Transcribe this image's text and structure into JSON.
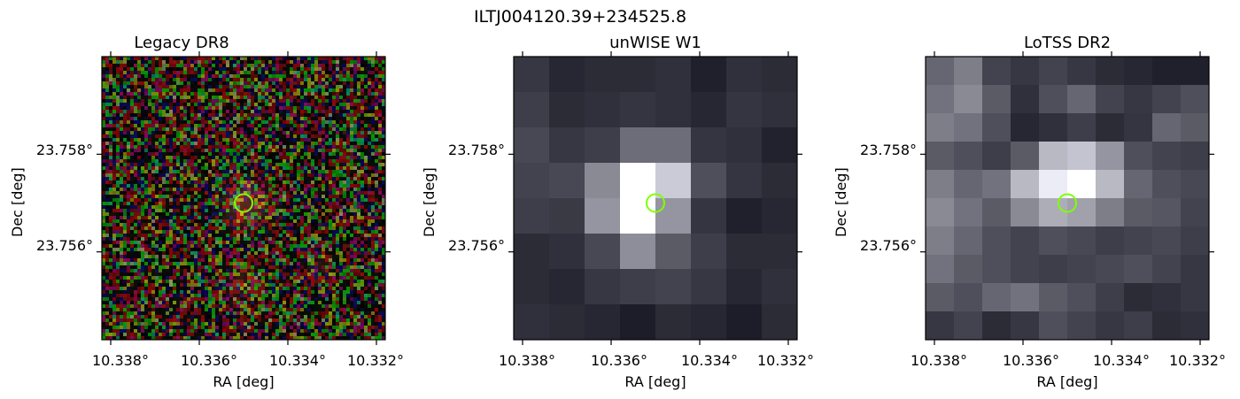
{
  "suptitle": "ILTJ004120.39+234525.8",
  "panels": [
    {
      "title": "Legacy DR8",
      "image": "legacy-rgb"
    },
    {
      "title": "unWISE W1",
      "image": "unwise-gray"
    },
    {
      "title": "LoTSS DR2",
      "image": "lotss-gray"
    }
  ],
  "axes": {
    "xlabel": "RA [deg]",
    "ylabel": "Dec [deg]",
    "xticks": [
      "10.338°",
      "10.336°",
      "10.334°",
      "10.332°"
    ],
    "yticks": [
      "23.758°",
      "23.756°"
    ]
  },
  "marker": {
    "type": "circle",
    "color": "#7fff00",
    "ra": 10.335,
    "dec": 23.757
  },
  "chart_data": {
    "type": "heatmap",
    "title": "ILTJ004120.39+234525.8",
    "subplots": [
      {
        "title": "Legacy DR8",
        "colormap": "rgb",
        "xlabel": "RA [deg]",
        "ylabel": "Dec [deg]",
        "xlim": [
          10.3382,
          10.3318
        ],
        "ylim": [
          23.7542,
          23.76
        ]
      },
      {
        "title": "unWISE W1",
        "colormap": "bone",
        "xlabel": "RA [deg]",
        "ylabel": "Dec [deg]",
        "xlim": [
          10.3382,
          10.3318
        ],
        "ylim": [
          23.7542,
          23.76
        ]
      },
      {
        "title": "LoTSS DR2",
        "colormap": "bone",
        "xlabel": "RA [deg]",
        "ylabel": "Dec [deg]",
        "xlim": [
          10.3382,
          10.3318
        ],
        "ylim": [
          23.7542,
          23.76
        ]
      }
    ],
    "xticks": [
      10.338,
      10.336,
      10.334,
      10.332
    ],
    "yticks": [
      23.758,
      23.756
    ],
    "source_position": {
      "ra": 10.335,
      "dec": 23.757
    }
  }
}
